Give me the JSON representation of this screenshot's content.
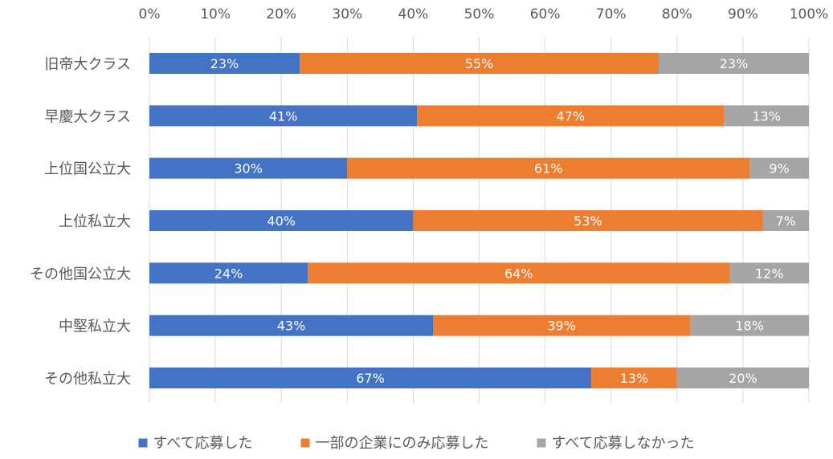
{
  "chart_data": {
    "type": "bar",
    "orientation": "horizontal",
    "stacked": "percent",
    "categories": [
      "旧帝大クラス",
      "早慶大クラス",
      "上位国公立大",
      "上位私立大",
      "その他国公立大",
      "中堅私立大",
      "その他私立大"
    ],
    "series": [
      {
        "name": "すべて応募した",
        "color": "#4472C4",
        "values": [
          23,
          41,
          30,
          40,
          24,
          43,
          67
        ]
      },
      {
        "name": "一部の企業にのみ応募した",
        "color": "#ED7D31",
        "values": [
          55,
          47,
          61,
          53,
          64,
          39,
          13
        ]
      },
      {
        "name": "すべて応募しなかった",
        "color": "#A5A5A5",
        "values": [
          23,
          13,
          9,
          7,
          12,
          18,
          20
        ]
      }
    ],
    "x_ticks": [
      "0%",
      "10%",
      "20%",
      "30%",
      "40%",
      "50%",
      "60%",
      "70%",
      "80%",
      "90%",
      "100%"
    ],
    "xlim": [
      0,
      100
    ],
    "x_axis_position": "top",
    "grid": true,
    "legend_position": "bottom",
    "data_label_suffix": "%"
  }
}
